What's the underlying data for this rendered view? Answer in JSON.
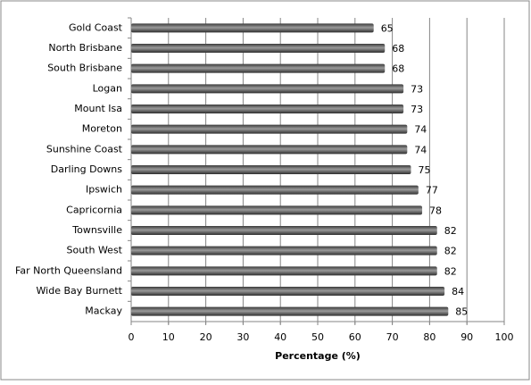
{
  "chart_data": {
    "type": "bar",
    "categories": [
      "Gold Coast",
      "North Brisbane",
      "South Brisbane",
      "Logan",
      "Mount Isa",
      "Moreton",
      "Sunshine Coast",
      "Darling Downs",
      "Ipswich",
      "Capricornia",
      "Townsville",
      "South West",
      "Far North Queensland",
      "Wide Bay Burnett",
      "Mackay"
    ],
    "values": [
      65,
      68,
      68,
      73,
      73,
      74,
      74,
      75,
      77,
      78,
      82,
      82,
      82,
      84,
      85
    ],
    "color": "#9a9a9a",
    "xlabel": "Percentage (%)",
    "xlim": [
      0,
      100
    ],
    "xticks": [
      0,
      10,
      20,
      30,
      40,
      50,
      60,
      70,
      80,
      90,
      100
    ],
    "grid": true
  }
}
